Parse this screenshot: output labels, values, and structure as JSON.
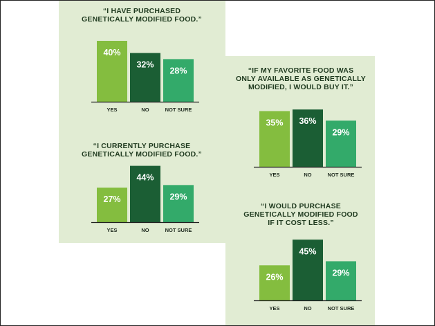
{
  "colors": {
    "background": "#ffffff",
    "panel_background": "#e1ecd3",
    "yes": "#84bd3f",
    "no": "#1b5e34",
    "not_sure": "#33aa6a",
    "baseline": "#1f1f1f",
    "title_text": "#1f3a1f"
  },
  "chart_data": [
    {
      "type": "bar",
      "title": [
        "“I HAVE PURCHASED",
        "GENETICALLY MODIFIED FOOD.”"
      ],
      "categories": [
        "YES",
        "NO",
        "NOT SURE"
      ],
      "values": [
        40,
        32,
        28
      ],
      "labels": [
        "40%",
        "32%",
        "28%"
      ],
      "ylim": [
        0,
        45
      ]
    },
    {
      "type": "bar",
      "title": [
        "“I CURRENTLY PURCHASE",
        "GENETICALLY MODIFIED FOOD.”"
      ],
      "categories": [
        "YES",
        "NO",
        "NOT SURE"
      ],
      "values": [
        27,
        44,
        29
      ],
      "labels": [
        "27%",
        "44%",
        "29%"
      ],
      "ylim": [
        0,
        45
      ]
    },
    {
      "type": "bar",
      "title": [
        "“IF MY FAVORITE FOOD WAS",
        "ONLY AVAILABLE AS GENETICALLY",
        "MODIFIED, I WOULD BUY IT.”"
      ],
      "categories": [
        "YES",
        "NO",
        "NOT SURE"
      ],
      "values": [
        35,
        36,
        29
      ],
      "labels": [
        "35%",
        "36%",
        "29%"
      ],
      "ylim": [
        0,
        45
      ]
    },
    {
      "type": "bar",
      "title": [
        "“I WOULD PURCHASE",
        "GENETICALLY MODIFIED FOOD",
        "IF IT COST LESS.”"
      ],
      "categories": [
        "YES",
        "NO",
        "NOT SURE"
      ],
      "values": [
        26,
        45,
        29
      ],
      "labels": [
        "26%",
        "45%",
        "29%"
      ],
      "ylim": [
        0,
        45
      ]
    }
  ]
}
